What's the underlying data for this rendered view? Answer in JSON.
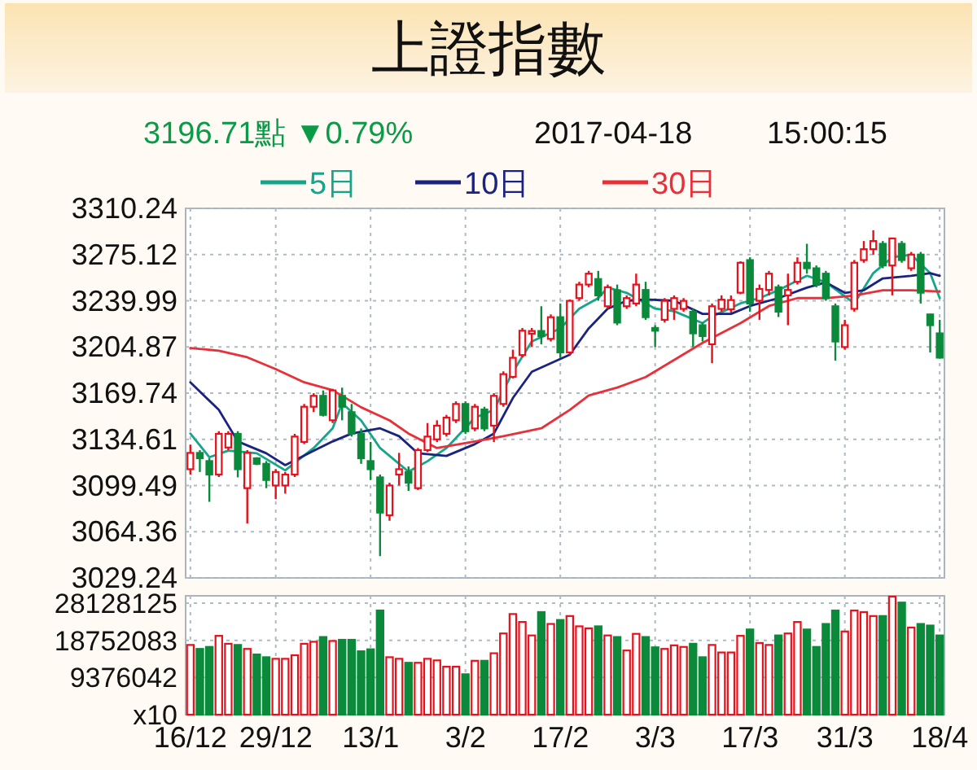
{
  "chart_data": [
    {
      "type": "candlestick",
      "title": "上證指數",
      "subtitle": "3196.71點 ▼0.79%",
      "annotations": [
        "2017-04-18",
        "15:00:15"
      ],
      "categories": [
        null,
        null,
        null,
        null,
        null,
        null,
        null,
        null,
        null,
        null,
        null,
        null,
        null,
        null,
        null,
        null,
        null,
        null,
        null,
        null,
        null,
        null,
        null,
        null,
        null,
        null,
        null,
        null,
        null,
        null,
        null,
        null,
        null,
        null,
        null,
        null,
        null,
        null,
        null,
        null,
        null,
        null,
        null,
        null,
        null,
        null,
        null,
        null,
        null,
        null,
        null,
        null,
        null,
        null,
        null,
        null,
        null,
        null,
        null,
        null,
        null,
        null,
        null,
        null,
        null,
        null,
        null,
        null,
        null,
        null,
        null,
        null,
        null,
        null,
        null,
        null,
        null,
        null,
        null,
        null
      ],
      "ohlc": [
        [
          3111.9,
          3130.5,
          3107.8,
          3124.3
        ],
        [
          3124.3,
          3126.4,
          3109.8,
          3120.2
        ],
        [
          3118.1,
          3120.2,
          3087.1,
          3107.8
        ],
        [
          3107.8,
          3140.8,
          3106.0,
          3138.8
        ],
        [
          3128.4,
          3140.8,
          3126.4,
          3138.8
        ],
        [
          3138.8,
          3140.8,
          3105.7,
          3111.9
        ],
        [
          3097.5,
          3126.4,
          3070.6,
          3124.3
        ],
        [
          3120.2,
          3121.0,
          3115.0,
          3116.0
        ],
        [
          3116.0,
          3118.1,
          3097.5,
          3103.7
        ],
        [
          3099.5,
          3111.9,
          3089.2,
          3109.8
        ],
        [
          3099.5,
          3109.8,
          3093.3,
          3107.8
        ],
        [
          3107.8,
          3138.8,
          3106.0,
          3136.7
        ],
        [
          3132.6,
          3161.5,
          3131.0,
          3159.4
        ],
        [
          3159.4,
          3169.7,
          3155.3,
          3167.7
        ],
        [
          3167.7,
          3171.8,
          3152.0,
          3153.2
        ],
        [
          3149.1,
          3173.0,
          3147.0,
          3171.8
        ],
        [
          3167.7,
          3173.9,
          3149.1,
          3159.4
        ],
        [
          3155.3,
          3161.5,
          3136.7,
          3138.8
        ],
        [
          3138.8,
          3142.9,
          3116.0,
          3120.2
        ],
        [
          3118.1,
          3132.6,
          3103.7,
          3111.9
        ],
        [
          3105.7,
          3107.8,
          3045.8,
          3078.9
        ],
        [
          3076.8,
          3101.6,
          3072.7,
          3099.5
        ],
        [
          3107.8,
          3124.3,
          3099.5,
          3111.9
        ],
        [
          3109.8,
          3114.0,
          3095.4,
          3101.6
        ],
        [
          3097.5,
          3128.0,
          3096.0,
          3126.4
        ],
        [
          3126.4,
          3147.0,
          3125.0,
          3136.7
        ],
        [
          3134.6,
          3149.1,
          3132.6,
          3145.0
        ],
        [
          3138.8,
          3153.2,
          3136.7,
          3151.1
        ],
        [
          3149.1,
          3163.5,
          3147.0,
          3161.5
        ],
        [
          3161.5,
          3163.5,
          3138.8,
          3140.8
        ],
        [
          3142.9,
          3161.5,
          3140.8,
          3159.4
        ],
        [
          3157.3,
          3159.4,
          3140.8,
          3142.9
        ],
        [
          3145.0,
          3169.7,
          3132.6,
          3167.7
        ],
        [
          3161.5,
          3186.3,
          3159.4,
          3184.2
        ],
        [
          3182.1,
          3202.8,
          3181.0,
          3196.6
        ],
        [
          3198.7,
          3219.3,
          3197.0,
          3217.2
        ],
        [
          3215.0,
          3219.3,
          3204.8,
          3217.0
        ],
        [
          3217.0,
          3235.8,
          3206.9,
          3213.0
        ],
        [
          3211.0,
          3229.6,
          3209.0,
          3227.5
        ],
        [
          3227.5,
          3237.9,
          3196.6,
          3200.7
        ],
        [
          3200.7,
          3241.0,
          3198.7,
          3239.9
        ],
        [
          3242.0,
          3254.4,
          3240.0,
          3252.3
        ],
        [
          3252.3,
          3262.7,
          3250.3,
          3260.6
        ],
        [
          3256.5,
          3262.7,
          3240.0,
          3244.1
        ],
        [
          3235.8,
          3252.3,
          3233.8,
          3250.3
        ],
        [
          3248.0,
          3252.3,
          3221.4,
          3223.4
        ],
        [
          3235.8,
          3244.1,
          3233.8,
          3242.0
        ],
        [
          3237.9,
          3260.6,
          3235.8,
          3252.3
        ],
        [
          3248.2,
          3254.4,
          3225.5,
          3227.5
        ],
        [
          3219.3,
          3221.4,
          3204.8,
          3217.2
        ],
        [
          3225.5,
          3242.0,
          3223.4,
          3239.9
        ],
        [
          3233.8,
          3244.1,
          3225.5,
          3242.0
        ],
        [
          3233.8,
          3242.0,
          3231.7,
          3239.9
        ],
        [
          3231.7,
          3233.8,
          3204.8,
          3215.2
        ],
        [
          3221.4,
          3223.4,
          3209.0,
          3213.1
        ],
        [
          3206.9,
          3237.9,
          3192.5,
          3235.8
        ],
        [
          3233.8,
          3244.1,
          3231.7,
          3240.8
        ],
        [
          3233.5,
          3244.0,
          3231.0,
          3240.5
        ],
        [
          3246.1,
          3270.0,
          3245.0,
          3268.9
        ],
        [
          3270.9,
          3273.0,
          3231.7,
          3237.9
        ],
        [
          3240.0,
          3252.3,
          3225.5,
          3249.0
        ],
        [
          3248.2,
          3262.7,
          3244.1,
          3260.6
        ],
        [
          3250.3,
          3252.3,
          3227.6,
          3231.7
        ],
        [
          3244.1,
          3260.6,
          3221.4,
          3248.2
        ],
        [
          3254.4,
          3273.0,
          3252.3,
          3268.9
        ],
        [
          3268.9,
          3283.3,
          3260.6,
          3264.7
        ],
        [
          3264.7,
          3266.8,
          3250.3,
          3252.3
        ],
        [
          3260.6,
          3262.7,
          3240.0,
          3242.0
        ],
        [
          3235.8,
          3237.9,
          3194.5,
          3209.0
        ],
        [
          3204.8,
          3225.5,
          3202.8,
          3221.4
        ],
        [
          3233.8,
          3271.0,
          3231.7,
          3268.9
        ],
        [
          3270.9,
          3285.4,
          3268.9,
          3279.2
        ],
        [
          3279.2,
          3293.6,
          3275.0,
          3285.4
        ],
        [
          3283.3,
          3285.4,
          3264.7,
          3266.8
        ],
        [
          3266.8,
          3288.0,
          3244.1,
          3287.4
        ],
        [
          3283.3,
          3285.4,
          3268.9,
          3270.9
        ],
        [
          3264.7,
          3277.1,
          3262.7,
          3275.1
        ],
        [
          3275.1,
          3277.1,
          3237.9,
          3246.1
        ],
        [
          3229.6,
          3230.0,
          3200.7,
          3221.4
        ],
        [
          3215.2,
          3225.5,
          3196.0,
          3196.71
        ]
      ],
      "colors": [
        "#e8101a",
        "#0a8a3a",
        "#0a8a3a",
        "#e8101a",
        "#e8101a",
        "#0a8a3a",
        "#e8101a",
        "#0a8a3a",
        "#0a8a3a",
        "#e8101a",
        "#e8101a",
        "#e8101a",
        "#e8101a",
        "#e8101a",
        "#0a8a3a",
        "#e8101a",
        "#0a8a3a",
        "#0a8a3a",
        "#0a8a3a",
        "#0a8a3a",
        "#0a8a3a",
        "#e8101a",
        "#e8101a",
        "#0a8a3a",
        "#e8101a",
        "#e8101a",
        "#e8101a",
        "#e8101a",
        "#e8101a",
        "#0a8a3a",
        "#e8101a",
        "#0a8a3a",
        "#e8101a",
        "#e8101a",
        "#e8101a",
        "#e8101a",
        "#e8101a",
        "#0a8a3a",
        "#e8101a",
        "#0a8a3a",
        "#e8101a",
        "#e8101a",
        "#e8101a",
        "#0a8a3a",
        "#e8101a",
        "#0a8a3a",
        "#e8101a",
        "#e8101a",
        "#0a8a3a",
        "#0a8a3a",
        "#e8101a",
        "#e8101a",
        "#e8101a",
        "#0a8a3a",
        "#0a8a3a",
        "#e8101a",
        "#e8101a",
        "#e8101a",
        "#e8101a",
        "#0a8a3a",
        "#e8101a",
        "#e8101a",
        "#0a8a3a",
        "#e8101a",
        "#e8101a",
        "#0a8a3a",
        "#0a8a3a",
        "#0a8a3a",
        "#0a8a3a",
        "#e8101a",
        "#e8101a",
        "#e8101a",
        "#e8101a",
        "#0a8a3a",
        "#e8101a",
        "#0a8a3a",
        "#e8101a",
        "#0a8a3a",
        "#0a8a3a",
        "#0a8a3a"
      ],
      "series": [
        {
          "name": "5日",
          "type": "line",
          "color": "#14a58a",
          "values": [
            3139,
            null,
            3121,
            null,
            3126,
            null,
            null,
            3124,
            null,
            null,
            3111,
            null,
            null,
            3128,
            null,
            3143,
            3162,
            null,
            3149,
            null,
            3128,
            null,
            null,
            3110,
            null,
            3118,
            null,
            3128,
            null,
            null,
            3151,
            null,
            3157,
            null,
            3186,
            null,
            3209,
            null,
            null,
            3219,
            null,
            3234,
            null,
            3242,
            3250,
            null,
            3246,
            null,
            null,
            3234,
            null,
            3232,
            null,
            null,
            3223,
            3228,
            null,
            null,
            3238,
            null,
            3242,
            null,
            3248,
            null,
            null,
            3259,
            null,
            3254,
            null,
            null,
            3238,
            null,
            3261,
            null,
            3273,
            null,
            3275,
            null,
            3261,
            3242
          ]
        },
        {
          "name": "10日",
          "type": "line",
          "color": "#1b2380",
          "values": [
            3178,
            null,
            null,
            3157,
            null,
            3133,
            null,
            null,
            3124,
            null,
            3115,
            null,
            null,
            3126,
            null,
            3133,
            null,
            3139,
            null,
            null,
            3143,
            null,
            3137,
            null,
            3124,
            null,
            null,
            3122,
            null,
            null,
            3131,
            null,
            3139,
            null,
            3166,
            null,
            3186,
            null,
            null,
            null,
            3199,
            null,
            3219,
            null,
            3234,
            null,
            3240,
            null,
            3241,
            null,
            null,
            3240,
            null,
            null,
            3230,
            null,
            null,
            3230,
            null,
            3236,
            null,
            null,
            3242,
            null,
            null,
            3250,
            null,
            3254,
            null,
            3246,
            null,
            3248,
            null,
            3257,
            null,
            null,
            3259,
            null,
            3261,
            3259
          ]
        },
        {
          "name": "30日",
          "type": "line",
          "color": "#e8303a",
          "values": [
            3204,
            null,
            null,
            3202,
            null,
            null,
            3197,
            null,
            null,
            3188,
            null,
            null,
            3178,
            null,
            null,
            3172,
            null,
            null,
            3159,
            null,
            null,
            3149,
            null,
            3139,
            null,
            null,
            3128,
            null,
            null,
            null,
            3133,
            null,
            null,
            3137,
            null,
            null,
            null,
            3143,
            null,
            null,
            3157,
            null,
            3168,
            null,
            null,
            3174,
            null,
            null,
            3182,
            null,
            null,
            3195,
            null,
            null,
            3208,
            null,
            null,
            null,
            3223,
            null,
            null,
            3236,
            null,
            null,
            3242,
            null,
            null,
            3242,
            null,
            null,
            3244,
            null,
            null,
            3248,
            null,
            null,
            3248,
            null,
            null,
            3247
          ]
        }
      ],
      "ylim": [
        3029.24,
        3310.24
      ],
      "yticks": [
        3029.24,
        3064.36,
        3099.49,
        3134.61,
        3169.74,
        3204.87,
        3239.99,
        3275.12,
        3310.24
      ],
      "grid": true,
      "legend": "top",
      "tick_labels": "y"
    },
    {
      "type": "bar",
      "categories": [
        "16/12",
        null,
        null,
        null,
        null,
        null,
        null,
        null,
        null,
        "29/12",
        null,
        null,
        null,
        null,
        null,
        null,
        null,
        null,
        null,
        "13/1",
        null,
        null,
        null,
        null,
        null,
        null,
        null,
        null,
        null,
        "3/2",
        null,
        null,
        null,
        null,
        null,
        null,
        null,
        null,
        null,
        "17/2",
        null,
        null,
        null,
        null,
        null,
        null,
        null,
        null,
        null,
        "3/3",
        null,
        null,
        null,
        null,
        null,
        null,
        null,
        null,
        null,
        "17/3",
        null,
        null,
        null,
        null,
        null,
        null,
        null,
        null,
        null,
        "31/3",
        null,
        null,
        null,
        null,
        null,
        null,
        null,
        null,
        null,
        "18/4"
      ],
      "values": [
        17600000,
        16600000,
        17100000,
        19900000,
        17900000,
        17600000,
        16600000,
        15200000,
        14500000,
        14100000,
        14100000,
        15000000,
        17900000,
        18400000,
        19600000,
        18600000,
        18900000,
        18900000,
        16000000,
        16500000,
        26300000,
        14500000,
        14100000,
        13100000,
        13100000,
        14100000,
        13700000,
        12100000,
        12100000,
        10200000,
        13600000,
        13600000,
        15500000,
        20500000,
        25400000,
        23400000,
        20000000,
        25900000,
        22900000,
        23900000,
        24900000,
        22300000,
        21800000,
        22300000,
        20000000,
        19600000,
        16200000,
        20400000,
        19600000,
        17000000,
        16600000,
        17500000,
        17100000,
        17900000,
        14500000,
        17600000,
        15700000,
        15700000,
        19900000,
        21500000,
        18100000,
        17600000,
        20000000,
        20500000,
        23400000,
        21500000,
        17100000,
        22900000,
        26300000,
        21000000,
        26300000,
        25900000,
        24900000,
        24900000,
        29800000,
        28300000,
        22000000,
        22900000,
        22500000,
        20000000
      ],
      "colors": [
        "#e8101a",
        "#0a8a3a",
        "#0a8a3a",
        "#e8101a",
        "#e8101a",
        "#0a8a3a",
        "#e8101a",
        "#0a8a3a",
        "#0a8a3a",
        "#e8101a",
        "#e8101a",
        "#e8101a",
        "#e8101a",
        "#e8101a",
        "#0a8a3a",
        "#e8101a",
        "#0a8a3a",
        "#0a8a3a",
        "#0a8a3a",
        "#0a8a3a",
        "#0a8a3a",
        "#e8101a",
        "#e8101a",
        "#0a8a3a",
        "#e8101a",
        "#e8101a",
        "#e8101a",
        "#e8101a",
        "#e8101a",
        "#0a8a3a",
        "#e8101a",
        "#0a8a3a",
        "#e8101a",
        "#e8101a",
        "#e8101a",
        "#e8101a",
        "#e8101a",
        "#0a8a3a",
        "#e8101a",
        "#0a8a3a",
        "#e8101a",
        "#e8101a",
        "#e8101a",
        "#0a8a3a",
        "#e8101a",
        "#0a8a3a",
        "#e8101a",
        "#e8101a",
        "#0a8a3a",
        "#0a8a3a",
        "#e8101a",
        "#e8101a",
        "#e8101a",
        "#0a8a3a",
        "#0a8a3a",
        "#e8101a",
        "#e8101a",
        "#e8101a",
        "#e8101a",
        "#0a8a3a",
        "#e8101a",
        "#e8101a",
        "#0a8a3a",
        "#e8101a",
        "#e8101a",
        "#0a8a3a",
        "#0a8a3a",
        "#0a8a3a",
        "#0a8a3a",
        "#e8101a",
        "#e8101a",
        "#e8101a",
        "#e8101a",
        "#0a8a3a",
        "#e8101a",
        "#0a8a3a",
        "#e8101a",
        "#0a8a3a",
        "#0a8a3a",
        "#0a8a3a"
      ],
      "ylim": [
        0,
        30000000
      ],
      "yticks": [
        {
          "value": 0,
          "label": "x10"
        },
        9376042,
        18752083,
        28128125
      ],
      "grid": true
    }
  ]
}
